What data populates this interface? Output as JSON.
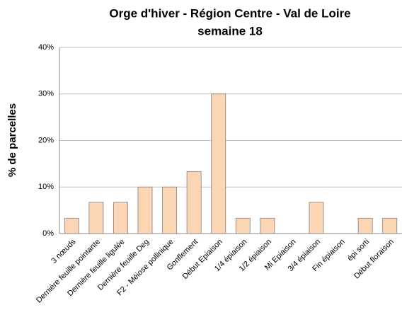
{
  "chart_data": {
    "type": "bar",
    "title": "Orge d'hiver - Région Centre - Val de Loire",
    "subtitle": "semaine 18",
    "y_label": "% de parcelles",
    "categories": [
      "3 nœuds",
      "Dernière feuille pointante",
      "Dernière feuille ligulée",
      "Dernière feuille Deg",
      "F2 - Méiose pollinique",
      "Gonflement",
      "Début Epiaison",
      "1/4 épiaison",
      "1/2 épiaison",
      "Mi Epiaison",
      "3/4 épiaison",
      "Fin épiaison",
      "épi sorti",
      "Début floraison"
    ],
    "values": [
      3.3,
      6.7,
      6.7,
      10,
      10,
      13.3,
      30,
      3.3,
      3.3,
      0,
      6.7,
      0,
      3.3,
      3.3
    ],
    "color": "#fcd5b5",
    "ylim": [
      0,
      40
    ],
    "yticks": [
      {
        "value": 0,
        "label": "0%"
      },
      {
        "value": 10,
        "label": "10%"
      },
      {
        "value": 20,
        "label": "20%"
      },
      {
        "value": 30,
        "label": "30%"
      },
      {
        "value": 40,
        "label": "40%"
      }
    ],
    "grid": true
  }
}
